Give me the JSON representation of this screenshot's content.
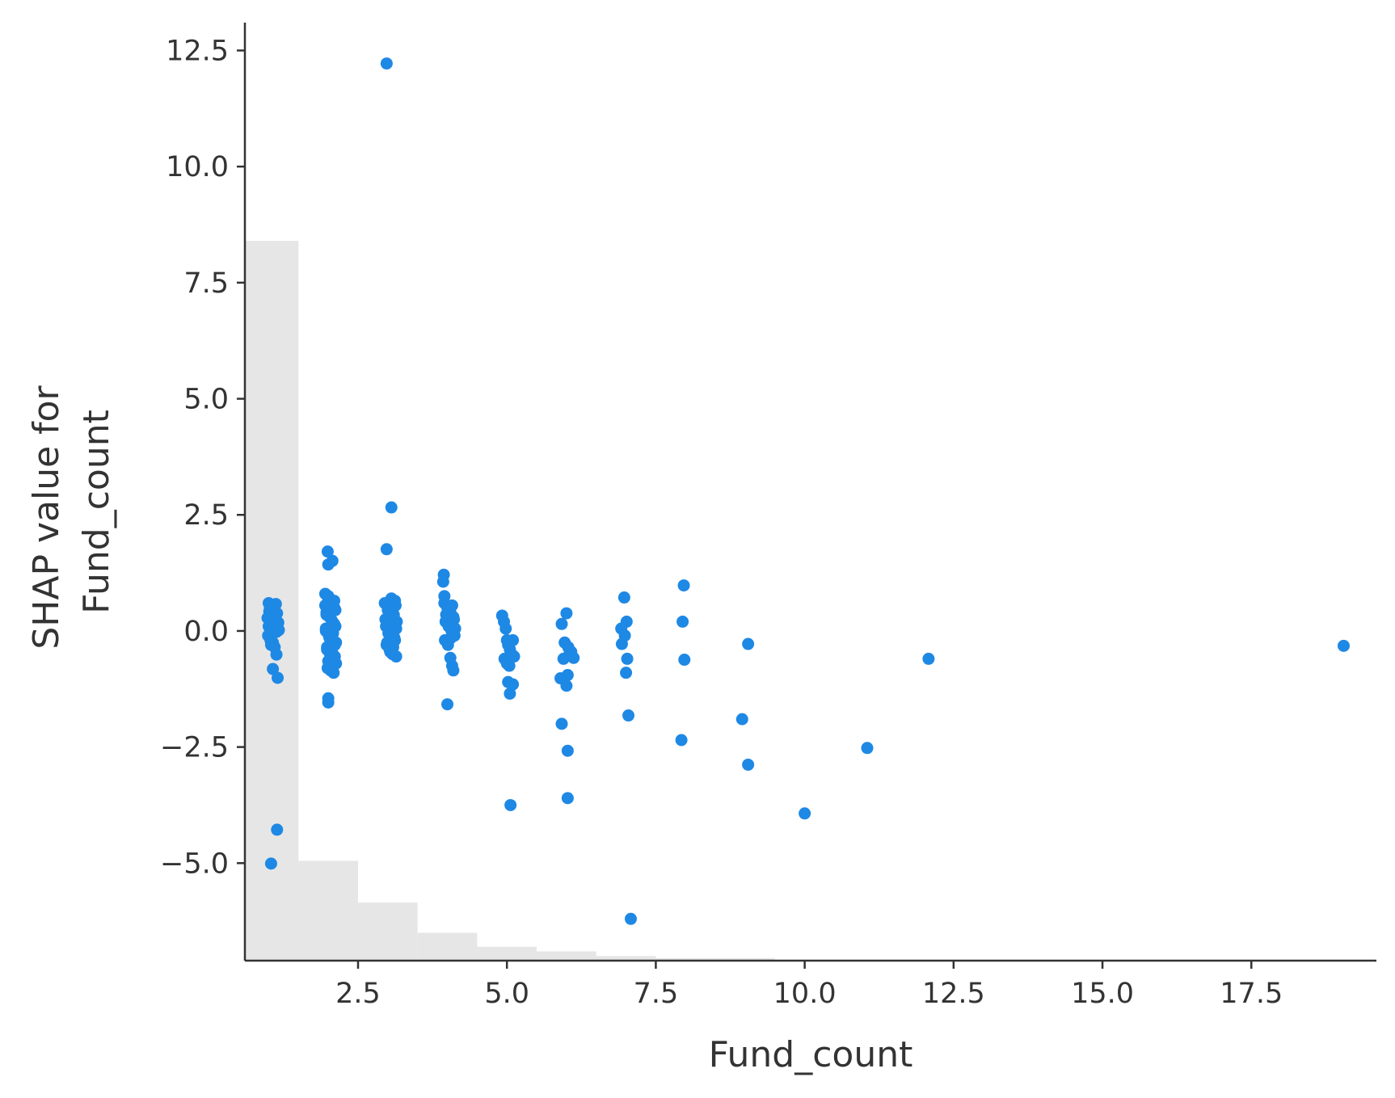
{
  "chart_data": {
    "type": "scatter",
    "xlabel": "Fund_count",
    "ylabel_lines": [
      "SHAP value for",
      "Fund_count"
    ],
    "xlim": [
      0.6,
      19.6
    ],
    "ylim": [
      -7.1,
      13.1
    ],
    "x_ticks": [
      2.5,
      5.0,
      7.5,
      10.0,
      12.5,
      15.0,
      17.5
    ],
    "x_tick_labels": [
      "2.5",
      "5.0",
      "7.5",
      "10.0",
      "12.5",
      "15.0",
      "17.5"
    ],
    "y_ticks": [
      -5.0,
      -2.5,
      0.0,
      2.5,
      5.0,
      7.5,
      10.0,
      12.5
    ],
    "y_tick_labels": [
      "−5.0",
      "−2.5",
      "0.0",
      "2.5",
      "5.0",
      "7.5",
      "10.0",
      "12.5"
    ],
    "grid": false,
    "point_color": "#1e88e5",
    "histogram_color": "#e6e6e6",
    "histogram": {
      "bins": [
        {
          "x0": 0.6,
          "x1": 1.5,
          "top": 8.4
        },
        {
          "x0": 1.5,
          "x1": 2.5,
          "top": -4.95
        },
        {
          "x0": 2.5,
          "x1": 3.5,
          "top": -5.85
        },
        {
          "x0": 3.5,
          "x1": 4.5,
          "top": -6.5
        },
        {
          "x0": 4.5,
          "x1": 5.5,
          "top": -6.8
        },
        {
          "x0": 5.5,
          "x1": 6.5,
          "top": -6.9
        },
        {
          "x0": 6.5,
          "x1": 7.5,
          "top": -7.0
        },
        {
          "x0": 7.5,
          "x1": 9.5,
          "top": -7.05
        }
      ]
    },
    "points": [
      [
        1.0,
        0.6
      ],
      [
        1.02,
        0.5
      ],
      [
        1.04,
        0.4
      ],
      [
        1.06,
        0.35
      ],
      [
        1.08,
        0.3
      ],
      [
        1.1,
        0.25
      ],
      [
        1.12,
        0.2
      ],
      [
        1.14,
        0.15
      ],
      [
        1.0,
        0.1
      ],
      [
        1.02,
        0.05
      ],
      [
        1.04,
        0.0
      ],
      [
        1.06,
        -0.05
      ],
      [
        1.08,
        0.45
      ],
      [
        1.1,
        0.55
      ],
      [
        1.12,
        0.58
      ],
      [
        1.14,
        0.38
      ],
      [
        0.98,
        0.28
      ],
      [
        1.16,
        0.18
      ],
      [
        0.99,
        -0.1
      ],
      [
        1.15,
        0.08
      ],
      [
        1.03,
        -0.2
      ],
      [
        1.07,
        -0.25
      ],
      [
        1.11,
        0.32
      ],
      [
        1.05,
        0.22
      ],
      [
        1.09,
        0.12
      ],
      [
        1.13,
        -0.02
      ],
      [
        1.01,
        0.42
      ],
      [
        1.17,
        0.02
      ],
      [
        1.04,
        -0.3
      ],
      [
        1.1,
        -0.35
      ],
      [
        1.07,
        -0.82
      ],
      [
        1.13,
        -0.51
      ],
      [
        1.15,
        -1.01
      ],
      [
        1.14,
        -4.28
      ],
      [
        1.04,
        -5.01
      ],
      [
        1.95,
        0.8
      ],
      [
        2.0,
        0.7
      ],
      [
        2.05,
        0.6
      ],
      [
        2.1,
        0.5
      ],
      [
        1.97,
        0.4
      ],
      [
        2.02,
        0.3
      ],
      [
        2.07,
        0.2
      ],
      [
        2.12,
        0.1
      ],
      [
        1.96,
        0.0
      ],
      [
        2.01,
        -0.1
      ],
      [
        2.06,
        -0.2
      ],
      [
        2.11,
        -0.3
      ],
      [
        1.98,
        -0.4
      ],
      [
        2.03,
        -0.5
      ],
      [
        2.08,
        -0.6
      ],
      [
        2.13,
        -0.7
      ],
      [
        1.99,
        -0.8
      ],
      [
        2.04,
        -0.85
      ],
      [
        2.09,
        -0.9
      ],
      [
        2.0,
        0.75
      ],
      [
        2.1,
        0.65
      ],
      [
        1.95,
        0.55
      ],
      [
        2.12,
        0.45
      ],
      [
        1.97,
        0.35
      ],
      [
        2.05,
        0.25
      ],
      [
        2.1,
        0.15
      ],
      [
        1.96,
        0.05
      ],
      [
        2.08,
        -0.05
      ],
      [
        2.02,
        -0.15
      ],
      [
        2.13,
        -0.25
      ],
      [
        1.98,
        -0.35
      ],
      [
        2.06,
        -0.45
      ],
      [
        2.11,
        -0.55
      ],
      [
        2.0,
        -0.65
      ],
      [
        2.04,
        -0.75
      ],
      [
        2.09,
        -0.7
      ],
      [
        1.99,
        1.71
      ],
      [
        2.07,
        1.51
      ],
      [
        2.0,
        1.43
      ],
      [
        2.0,
        -1.45
      ],
      [
        2.0,
        -1.54
      ],
      [
        2.95,
        0.6
      ],
      [
        3.0,
        0.5
      ],
      [
        3.05,
        0.4
      ],
      [
        3.1,
        0.3
      ],
      [
        3.15,
        0.2
      ],
      [
        2.97,
        0.1
      ],
      [
        3.02,
        0.0
      ],
      [
        3.07,
        -0.1
      ],
      [
        3.12,
        -0.2
      ],
      [
        2.98,
        -0.3
      ],
      [
        3.03,
        -0.4
      ],
      [
        3.08,
        -0.5
      ],
      [
        3.13,
        0.55
      ],
      [
        3.0,
        0.45
      ],
      [
        3.1,
        0.35
      ],
      [
        2.96,
        0.25
      ],
      [
        3.06,
        0.15
      ],
      [
        3.14,
        0.05
      ],
      [
        3.01,
        -0.05
      ],
      [
        3.11,
        -0.15
      ],
      [
        2.99,
        -0.25
      ],
      [
        3.09,
        -0.35
      ],
      [
        3.04,
        -0.45
      ],
      [
        3.14,
        -0.55
      ],
      [
        3.06,
        0.7
      ],
      [
        3.12,
        0.65
      ],
      [
        2.98,
        12.22
      ],
      [
        3.06,
        2.66
      ],
      [
        2.98,
        1.76
      ],
      [
        3.95,
        0.6
      ],
      [
        4.0,
        0.5
      ],
      [
        4.05,
        0.4
      ],
      [
        4.1,
        0.3
      ],
      [
        3.97,
        0.2
      ],
      [
        4.02,
        0.1
      ],
      [
        4.07,
        0.0
      ],
      [
        4.12,
        -0.1
      ],
      [
        3.96,
        -0.2
      ],
      [
        4.01,
        -0.3
      ],
      [
        4.06,
        -0.15
      ],
      [
        4.11,
        0.25
      ],
      [
        3.98,
        0.35
      ],
      [
        4.03,
        0.45
      ],
      [
        4.08,
        0.55
      ],
      [
        4.13,
        0.05
      ],
      [
        3.94,
        1.21
      ],
      [
        3.93,
        1.06
      ],
      [
        3.95,
        0.75
      ],
      [
        4.05,
        -0.58
      ],
      [
        4.08,
        -0.75
      ],
      [
        4.1,
        -0.85
      ],
      [
        4.0,
        -1.58
      ],
      [
        4.92,
        0.33
      ],
      [
        4.95,
        0.2
      ],
      [
        4.98,
        0.05
      ],
      [
        5.0,
        -0.2
      ],
      [
        5.02,
        -0.3
      ],
      [
        5.05,
        -0.4
      ],
      [
        5.08,
        -0.5
      ],
      [
        4.96,
        -0.6
      ],
      [
        5.0,
        -0.7
      ],
      [
        5.04,
        -0.75
      ],
      [
        5.1,
        -0.2
      ],
      [
        5.12,
        -0.55
      ],
      [
        5.02,
        -1.1
      ],
      [
        5.05,
        -1.35
      ],
      [
        5.1,
        -1.15
      ],
      [
        5.06,
        -3.75
      ],
      [
        5.92,
        0.15
      ],
      [
        6.0,
        0.38
      ],
      [
        5.97,
        -0.25
      ],
      [
        6.03,
        -0.35
      ],
      [
        6.08,
        -0.45
      ],
      [
        6.12,
        -0.58
      ],
      [
        5.95,
        -0.6
      ],
      [
        6.05,
        -0.5
      ],
      [
        5.9,
        -1.02
      ],
      [
        6.02,
        -0.95
      ],
      [
        6.0,
        -1.18
      ],
      [
        5.92,
        -2.0
      ],
      [
        6.02,
        -2.58
      ],
      [
        6.02,
        -3.6
      ],
      [
        6.92,
        0.05
      ],
      [
        6.97,
        0.72
      ],
      [
        7.01,
        0.2
      ],
      [
        6.98,
        -0.1
      ],
      [
        6.93,
        -0.28
      ],
      [
        7.02,
        -0.6
      ],
      [
        7.0,
        -0.9
      ],
      [
        7.04,
        -1.82
      ],
      [
        7.08,
        -6.2
      ],
      [
        7.97,
        0.98
      ],
      [
        7.95,
        0.2
      ],
      [
        7.98,
        -0.62
      ],
      [
        7.93,
        -2.35
      ],
      [
        9.05,
        -0.28
      ],
      [
        8.95,
        -1.9
      ],
      [
        9.05,
        -2.88
      ],
      [
        10.0,
        -3.93
      ],
      [
        11.05,
        -2.52
      ],
      [
        12.08,
        -0.6
      ],
      [
        19.05,
        -0.32
      ]
    ]
  }
}
